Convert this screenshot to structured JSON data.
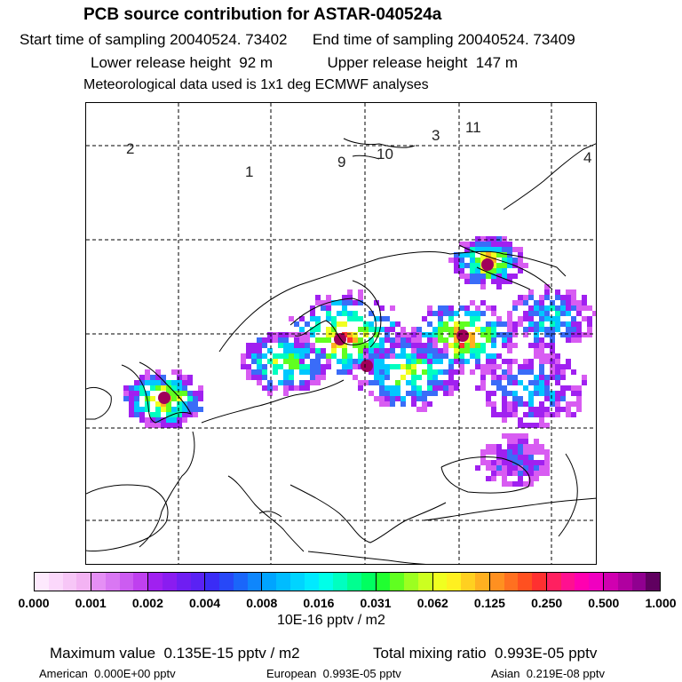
{
  "title": "PCB source contribution for ASTAR-040524a",
  "sampling": {
    "start_label": "Start time of sampling",
    "start_value": "20040524. 73402",
    "end_label": "End time of sampling",
    "end_value": "20040524. 73409"
  },
  "release": {
    "lower_label": "Lower release height",
    "lower_value": "92 m",
    "upper_label": "Upper release height",
    "upper_value": "147 m"
  },
  "meteo_note": "Meteorological data used is 1x1 deg ECMWF analyses",
  "region_labels": [
    "2",
    "1",
    "9",
    "10",
    "3",
    "11",
    "4"
  ],
  "colorbar": {
    "tick_labels": [
      "0.000",
      "0.001",
      "0.002",
      "0.004",
      "0.008",
      "0.016",
      "0.031",
      "0.062",
      "0.125",
      "0.250",
      "0.500",
      "1.000"
    ],
    "units": "10E-16 pptv / m2",
    "colors": [
      [
        "#fde9fd",
        "#fbd8fb",
        "#f7c6f7",
        "#f3b3f3"
      ],
      [
        "#e58ff5",
        "#d977f3",
        "#cc5cf1",
        "#bf40ef"
      ],
      [
        "#a020f0",
        "#8a1cf0",
        "#6f1ef2",
        "#5a22f4"
      ],
      [
        "#3a2cf6",
        "#2748f8",
        "#1a66fa",
        "#0f86fc"
      ],
      [
        "#00a4ff",
        "#00bcff",
        "#00d4ff",
        "#00eaff"
      ],
      [
        "#00ffe8",
        "#00ffc0",
        "#00ff90",
        "#00ff60"
      ],
      [
        "#20ff30",
        "#60ff20",
        "#9cff20",
        "#ccff20"
      ],
      [
        "#f0ff20",
        "#fff020",
        "#ffd020",
        "#ffb020"
      ],
      [
        "#ff9020",
        "#ff7020",
        "#ff5020",
        "#ff3030"
      ],
      [
        "#ff2060",
        "#ff1090",
        "#ff00b0",
        "#f000c0"
      ],
      [
        "#d000b0",
        "#b000a0",
        "#900090",
        "#600060"
      ]
    ]
  },
  "summary": {
    "max_label": "Maximum value",
    "max_value": "0.135E-15 pptv / m2",
    "total_label": "Total mixing ratio",
    "total_value": "0.993E-05 pptv",
    "american_label": "American",
    "american_value": "0.000E+00 pptv",
    "european_label": "European",
    "european_value": "0.993E-05 pptv",
    "asian_label": "Asian",
    "asian_value": "0.219E-08 pptv"
  }
}
